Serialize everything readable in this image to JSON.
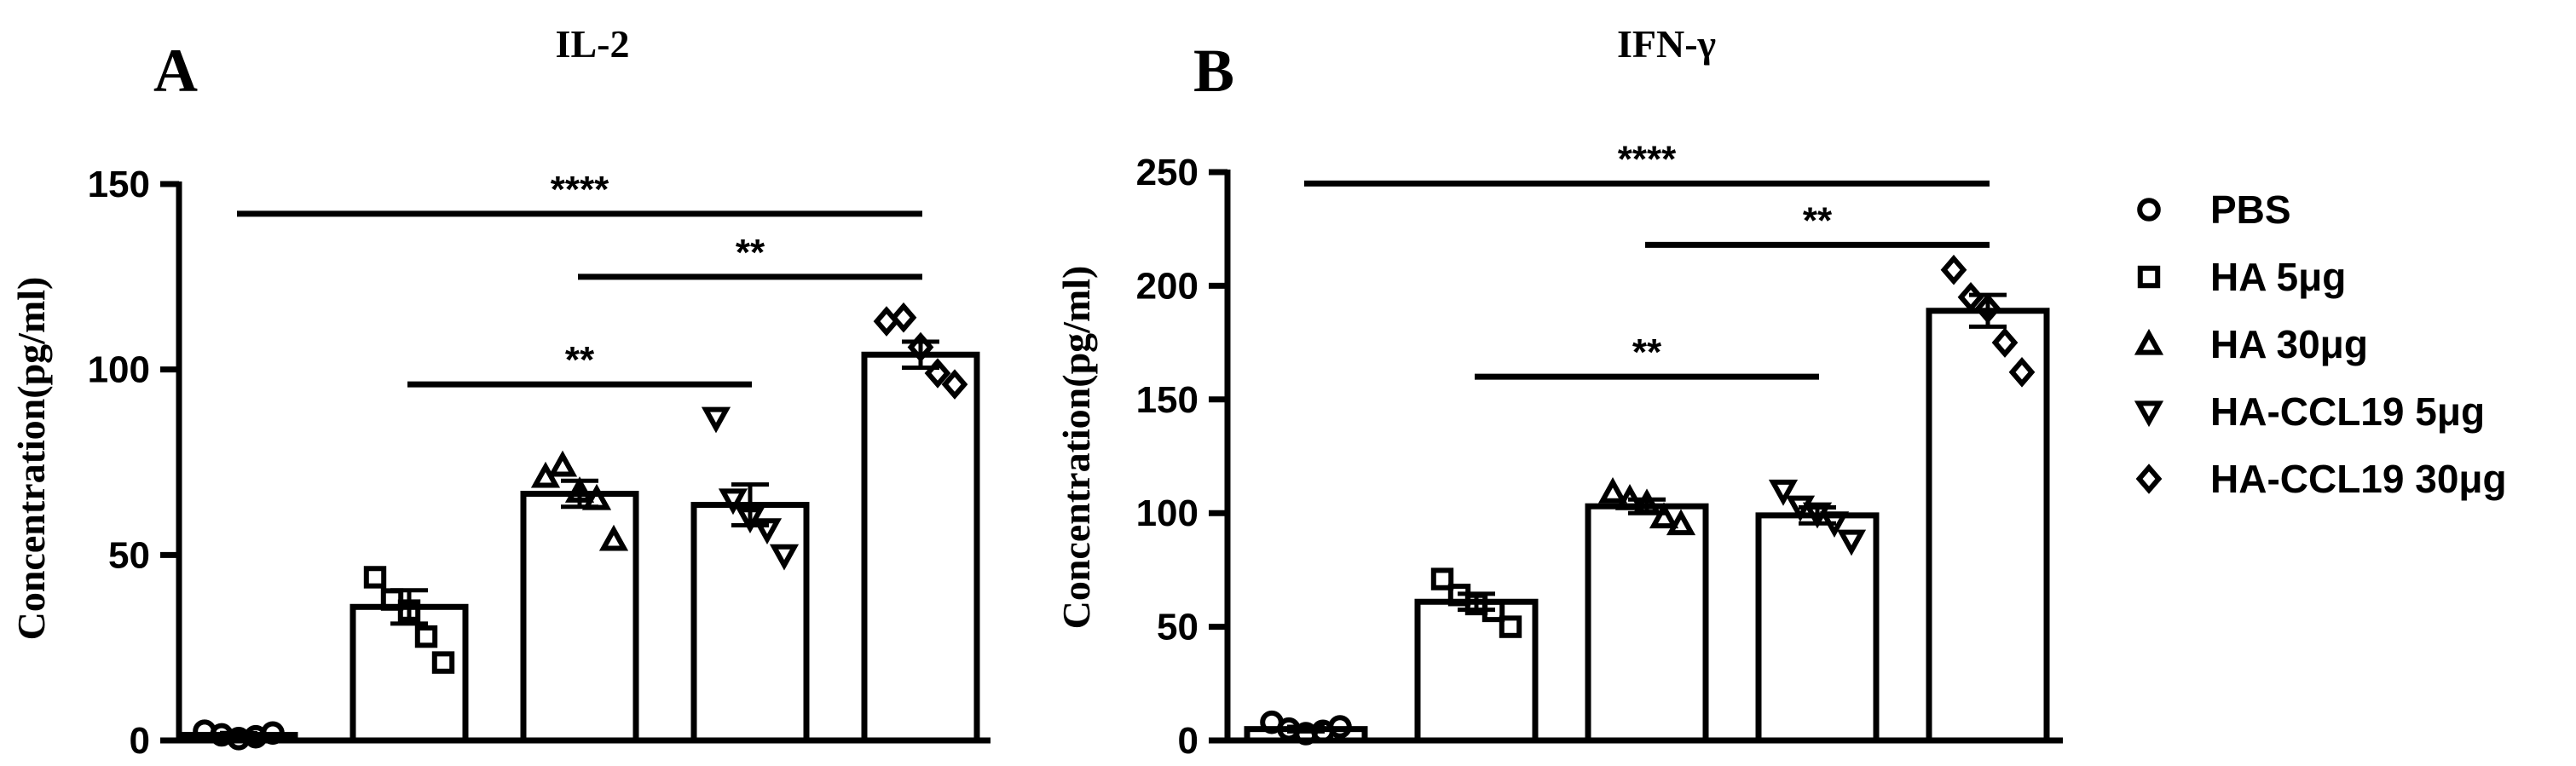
{
  "figure": {
    "panels": [
      {
        "letter": "A",
        "title": "IL-2"
      },
      {
        "letter": "B",
        "title": "IFN-γ"
      }
    ],
    "legend": {
      "placement": "right",
      "entries": [
        {
          "label": "PBS",
          "marker": "circle-icon"
        },
        {
          "label": "HA 5μg",
          "marker": "square-icon"
        },
        {
          "label": "HA 30μg",
          "marker": "triangle-up-icon"
        },
        {
          "label": "HA-CCL19 5μg",
          "marker": "triangle-down-icon"
        },
        {
          "label": "HA-CCL19 30μg",
          "marker": "diamond-icon"
        }
      ]
    },
    "colors": {
      "ink": "#000000",
      "bar_fill": "#ffffff"
    }
  },
  "chart_data": [
    {
      "type": "bar",
      "title": "IL-2",
      "ylabel": "Concentration(pg/ml)",
      "xlabel": "",
      "ylim": [
        0,
        150
      ],
      "yticks": [
        0,
        50,
        100,
        150
      ],
      "grid": false,
      "categories": [
        "PBS",
        "HA 5μg",
        "HA 30μg",
        "HA-CCL19 5μg",
        "HA-CCL19 30μg"
      ],
      "values": [
        1.5,
        36,
        66.5,
        63.5,
        104
      ],
      "errors": [
        0.5,
        4.5,
        3.5,
        5.5,
        3.5
      ],
      "points": [
        [
          2.5,
          1.5,
          0.5,
          1,
          2
        ],
        [
          44,
          38,
          35,
          28,
          21
        ],
        [
          71,
          74,
          67,
          65,
          54
        ],
        [
          87,
          65,
          60,
          57,
          50
        ],
        [
          113,
          114,
          106,
          99,
          96
        ]
      ],
      "significance": [
        {
          "from": "PBS",
          "to": "HA-CCL19 30μg",
          "label": "****",
          "y": 142
        },
        {
          "from": "HA 30μg",
          "to": "HA-CCL19 30μg",
          "label": "**",
          "y": 125
        },
        {
          "from": "HA 5μg",
          "to": "HA-CCL19 5μg",
          "label": "**",
          "y": 96
        }
      ]
    },
    {
      "type": "bar",
      "title": "IFN-γ",
      "ylabel": "Concentration(pg/ml)",
      "xlabel": "",
      "ylim": [
        0,
        250
      ],
      "yticks": [
        0,
        50,
        100,
        150,
        200,
        250
      ],
      "grid": false,
      "categories": [
        "PBS",
        "HA 5μg",
        "HA 30μg",
        "HA-CCL19 5μg",
        "HA-CCL19 30μg"
      ],
      "values": [
        5,
        61,
        103,
        99,
        189
      ],
      "errors": [
        1,
        3.5,
        3,
        3.5,
        7
      ],
      "points": [
        [
          8,
          5,
          3,
          4,
          6
        ],
        [
          71,
          64,
          60,
          57,
          50
        ],
        [
          109,
          106,
          104,
          98,
          95
        ],
        [
          110,
          103,
          100,
          96,
          88
        ],
        [
          207,
          195,
          190,
          175,
          162
        ]
      ],
      "significance": [
        {
          "from": "PBS",
          "to": "HA-CCL19 30μg",
          "label": "****",
          "y": 245
        },
        {
          "from": "HA 30μg",
          "to": "HA-CCL19 30μg",
          "label": "**",
          "y": 218
        },
        {
          "from": "HA 5μg",
          "to": "HA-CCL19 5μg",
          "label": "**",
          "y": 160
        }
      ]
    }
  ]
}
